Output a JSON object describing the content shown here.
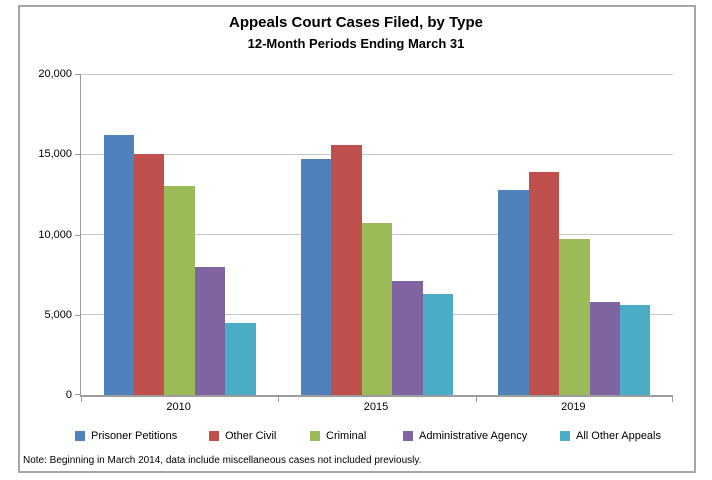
{
  "chart": {
    "background": "#ffffff",
    "border_color": "#a6a6a6",
    "axis_color": "#9c9c9c",
    "gridline_color": "#c6c6c6",
    "text_color": "#000000"
  },
  "chart_data": {
    "type": "bar",
    "title": "Appeals Court Cases Filed, by Type",
    "subtitle": "12-Month Periods Ending March 31",
    "categories": [
      "2010",
      "2015",
      "2019"
    ],
    "series": [
      {
        "name": "Prisoner Petitions",
        "color": "#4F81BD",
        "values": [
          16200,
          14700,
          12800
        ]
      },
      {
        "name": "Other Civil",
        "color": "#C0504D",
        "values": [
          15000,
          15600,
          13900
        ]
      },
      {
        "name": "Criminal",
        "color": "#9BBB59",
        "values": [
          13000,
          10700,
          9700
        ]
      },
      {
        "name": "Administrative Agency",
        "color": "#8064A2",
        "values": [
          8000,
          7100,
          5800
        ]
      },
      {
        "name": "All Other Appeals",
        "color": "#4BACC6",
        "values": [
          4500,
          6300,
          5600
        ]
      }
    ],
    "ylim": [
      0,
      20000
    ],
    "ytick_values": [
      20000,
      15000,
      10000,
      5000,
      0
    ],
    "ytick_labels": [
      "20,000",
      "15,000",
      "10,000",
      "5,000",
      "0"
    ],
    "grid": true,
    "legend_position": "bottom",
    "note": "Note: Beginning in March 2014, data include miscellaneous cases not included previously."
  }
}
